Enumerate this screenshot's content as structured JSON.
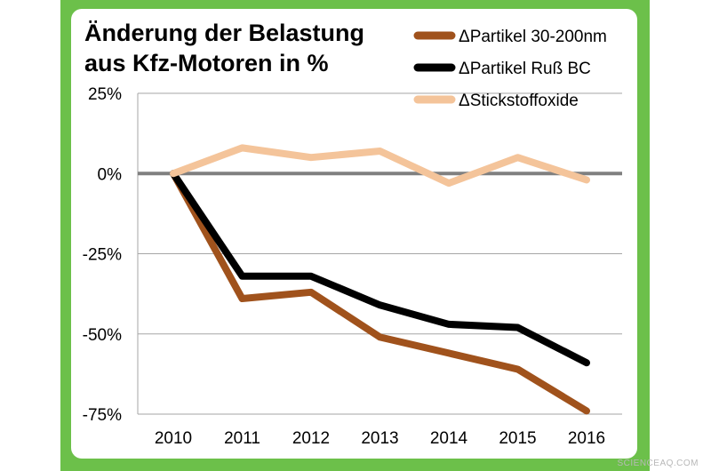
{
  "chart_data": {
    "type": "line",
    "title_lines": [
      "Änderung der Belastung",
      "aus Kfz-Motoren in %"
    ],
    "categories": [
      "2010",
      "2011",
      "2012",
      "2013",
      "2014",
      "2015",
      "2016"
    ],
    "y_ticks": [
      25,
      0,
      -25,
      -50,
      -75
    ],
    "y_tick_labels": [
      "25%",
      "0%",
      "-25%",
      "-50%",
      "-75%"
    ],
    "ylim": [
      -75,
      25
    ],
    "grid": true,
    "legend_position": "top-right",
    "series": [
      {
        "name": "ΔPartikel 30-200nm",
        "color": "#a0521c",
        "values": [
          0,
          -39,
          -37,
          -51,
          -56,
          -61,
          -74
        ]
      },
      {
        "name": "ΔPartikel Ruß BC",
        "color": "#000000",
        "values": [
          0,
          -32,
          -32,
          -41,
          -47,
          -48,
          -59
        ]
      },
      {
        "name": "ΔStickstoffoxide",
        "color": "#f4c49a",
        "values": [
          0,
          8,
          5,
          7,
          -3,
          5,
          -2
        ]
      }
    ]
  },
  "colors": {
    "frame": "#6cc04a",
    "panel": "#ffffff",
    "zero_line": "#808080",
    "grid": "#a6a6a6"
  },
  "watermark": "SCIENCEAQ.COM"
}
